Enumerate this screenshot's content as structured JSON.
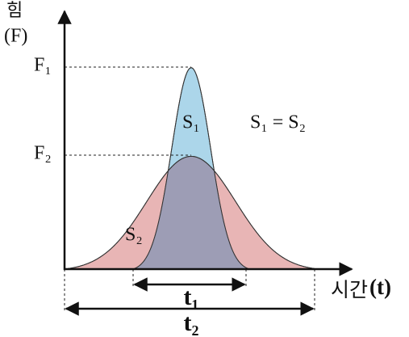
{
  "axis": {
    "y_label_top": "힘",
    "y_label_bottom": "(F)",
    "x_label": "시간",
    "x_label_symbol": "(t)"
  },
  "levels": {
    "f1": "F₁",
    "f2": "F₂"
  },
  "areas": {
    "s1": "S₁",
    "s2": "S₂",
    "equation": "S₁ = S₂"
  },
  "durations": {
    "t1": "t₁",
    "t2": "t₂"
  }
}
